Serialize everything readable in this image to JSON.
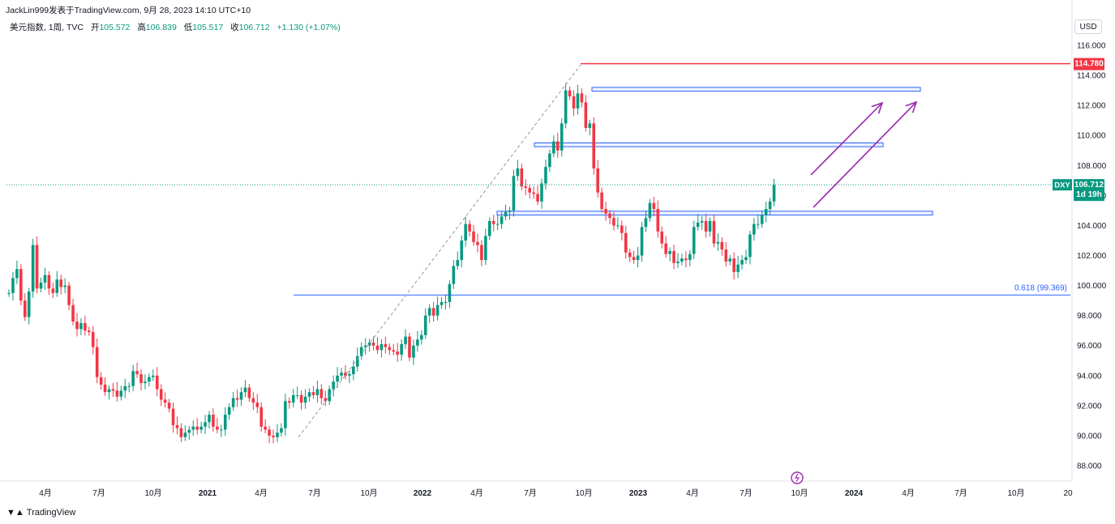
{
  "header": {
    "credit": "JackLin999发表于TradingView.com,  9月 28, 2023 14:10 UTC+10"
  },
  "legend": {
    "symbol": "美元指数, 1周, TVC",
    "open_label": "开",
    "open": "105.572",
    "high_label": "高",
    "high": "106.839",
    "low_label": "低",
    "low": "105.517",
    "close_label": "收",
    "close": "106.712",
    "change": "+1.130 (+1.07%)"
  },
  "currency_button": "USD",
  "footer": {
    "logo_text": "TradingView"
  },
  "colors": {
    "up": "#089981",
    "down": "#f23645",
    "resistance": "#f23645",
    "zone": "#2962ff",
    "arrow": "#9c27b0"
  },
  "chart_data": {
    "type": "candlestick",
    "ylim": [
      86.5,
      117.0
    ],
    "y_ticks": [
      "88.000",
      "90.000",
      "92.000",
      "94.000",
      "96.000",
      "98.000",
      "100.000",
      "102.000",
      "104.000",
      "106.000",
      "108.000",
      "110.000",
      "112.000",
      "114.000",
      "116.000"
    ],
    "x_ticks": [
      "4月",
      "7月",
      "10月",
      "2021",
      "4月",
      "7月",
      "10月",
      "2022",
      "4月",
      "7月",
      "10月",
      "2023",
      "4月",
      "7月",
      "10月",
      "2024",
      "4月",
      "7月",
      "10月",
      "20"
    ],
    "current_price": {
      "symbol": "DXY",
      "value": 106.712,
      "countdown": "1d 19h"
    },
    "resistance_level": {
      "value": 114.78,
      "label": "114.780"
    },
    "fib_level": {
      "value": 99.369,
      "label": "0.618 (99.369)"
    },
    "zones": [
      {
        "top": 113.2,
        "bottom": 112.95
      },
      {
        "top": 109.5,
        "bottom": 109.25
      },
      {
        "top": 104.95,
        "bottom": 104.7
      }
    ],
    "closes": [
      99.5,
      100.5,
      101.1,
      99.0,
      97.9,
      99.6,
      102.7,
      99.8,
      100.2,
      100.7,
      99.8,
      99.5,
      100.4,
      99.9,
      100.0,
      98.7,
      97.6,
      97.1,
      97.5,
      97.0,
      96.9,
      95.9,
      93.9,
      93.4,
      92.9,
      93.1,
      93.0,
      92.6,
      93.0,
      93.3,
      93.3,
      94.3,
      94.1,
      93.5,
      93.6,
      93.9,
      94.0,
      93.1,
      92.4,
      92.2,
      91.8,
      90.7,
      90.5,
      89.9,
      90.2,
      90.4,
      90.6,
      90.4,
      90.6,
      90.9,
      91.4,
      90.6,
      90.4,
      90.4,
      91.4,
      91.9,
      92.5,
      92.4,
      92.9,
      93.2,
      92.5,
      92.2,
      91.9,
      90.6,
      90.4,
      90.0,
      89.9,
      90.2,
      90.5,
      92.3,
      92.2,
      92.7,
      92.7,
      92.2,
      92.6,
      92.9,
      92.7,
      93.1,
      92.5,
      92.3,
      93.1,
      93.6,
      94.0,
      94.2,
      94.0,
      94.1,
      94.6,
      95.3,
      95.9,
      96.0,
      96.2,
      96.0,
      95.7,
      96.1,
      95.9,
      95.7,
      95.6,
      95.4,
      96.1,
      96.6,
      95.2,
      96.0,
      96.4,
      96.7,
      98.0,
      98.5,
      98.0,
      98.7,
      98.9,
      98.9,
      100.1,
      101.3,
      101.7,
      103.0,
      104.1,
      103.6,
      102.9,
      102.7,
      101.7,
      103.3,
      104.3,
      104.1,
      104.1,
      104.6,
      104.9,
      105.0,
      107.3,
      107.8,
      106.6,
      106.5,
      106.2,
      106.1,
      105.6,
      106.8,
      107.9,
      108.8,
      109.6,
      109.0,
      110.8,
      113.0,
      112.6,
      111.8,
      112.8,
      112.2,
      110.5,
      110.8,
      107.8,
      106.2,
      105.1,
      104.8,
      104.5,
      104.0,
      104.0,
      103.5,
      102.2,
      101.9,
      101.7,
      102.0,
      103.9,
      104.5,
      105.5,
      105.1,
      103.6,
      102.8,
      102.1,
      102.3,
      101.5,
      101.6,
      101.8,
      101.7,
      102.1,
      103.9,
      104.2,
      104.3,
      103.6,
      104.3,
      102.8,
      102.9,
      102.4,
      101.6,
      101.8,
      100.9,
      101.4,
      101.7,
      101.9,
      103.4,
      104.1,
      104.1,
      104.7,
      105.1,
      105.6,
      106.7
    ]
  }
}
